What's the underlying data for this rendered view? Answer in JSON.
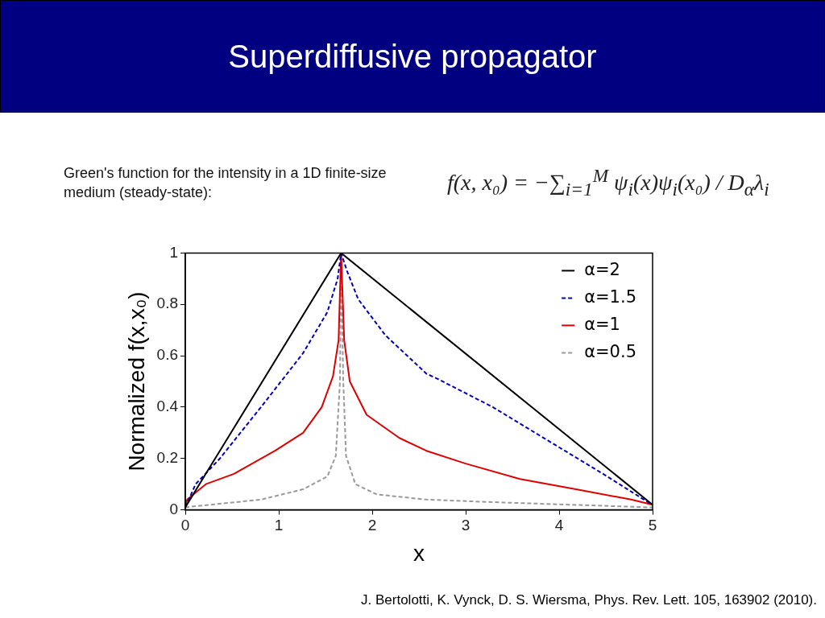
{
  "chart_data": {
    "type": "line",
    "title": "Superdiffusive propagator",
    "xlabel": "x",
    "ylabel": "Normalized f(x,x₀)",
    "annotations": [
      "Green's function for the intensity in a 1D finite-size medium (steady-state):",
      "f(x, x₀) = −∑$_{i=1}$$^{M}$ ψ$_{i}$(x)ψ$_{i}$(x₀) / D$_{α}$λ$_{i}$",
      "J. Bertolotti, K. Vynck, D. S. Wiersma, Phys. Rev. Lett. 105, 163902 (2010)."
    ],
    "xlim": [
      0,
      5
    ],
    "xticks": [
      0,
      1,
      2,
      3,
      4,
      5
    ],
    "ylim": [
      0,
      1
    ],
    "yticks": [
      0,
      0.2,
      0.4,
      0.6,
      0.8,
      1
    ],
    "grid": false,
    "legend": "top right",
    "marker": "none",
    "series": [
      {
        "name": "α=2",
        "color": "#000000",
        "line_style": "solid",
        "x": [
          0,
          1.667,
          5
        ],
        "values": [
          0.01,
          1,
          0.02
        ]
      },
      {
        "name": "α=1.5",
        "color": "#0000bb",
        "line_style": "dashed",
        "x": [
          0,
          0.11,
          0.37,
          0.81,
          1.26,
          1.52,
          1.63,
          1.667,
          1.73,
          1.85,
          2.14,
          2.58,
          2.7,
          3.29,
          3.88,
          4.47,
          4.95,
          5
        ],
        "values": [
          0.01,
          0.1,
          0.2,
          0.4,
          0.61,
          0.77,
          0.9,
          1,
          0.93,
          0.82,
          0.68,
          0.53,
          0.51,
          0.4,
          0.27,
          0.14,
          0.03,
          0.02
        ]
      },
      {
        "name": "α=1",
        "color": "#dd0000",
        "line_style": "solid",
        "x": [
          0,
          0.02,
          0.22,
          0.52,
          0.96,
          1.26,
          1.46,
          1.58,
          1.64,
          1.667,
          1.7,
          1.76,
          1.94,
          2.29,
          2.58,
          3.0,
          3.58,
          4.18,
          4.77,
          5
        ],
        "values": [
          0.01,
          0.04,
          0.1,
          0.14,
          0.23,
          0.3,
          0.4,
          0.52,
          0.66,
          1,
          0.66,
          0.5,
          0.37,
          0.28,
          0.23,
          0.18,
          0.12,
          0.08,
          0.04,
          0.02
        ]
      },
      {
        "name": "α=0.5",
        "color": "#999999",
        "line_style": "dashed",
        "x": [
          0,
          0.81,
          1.26,
          1.52,
          1.61,
          1.655,
          1.667,
          1.69,
          1.72,
          1.82,
          2.05,
          2.58,
          3.29,
          4.95,
          5
        ],
        "values": [
          0.01,
          0.04,
          0.08,
          0.13,
          0.21,
          0.5,
          1,
          0.5,
          0.21,
          0.1,
          0.06,
          0.04,
          0.03,
          0.01,
          0.01
        ]
      }
    ]
  }
}
